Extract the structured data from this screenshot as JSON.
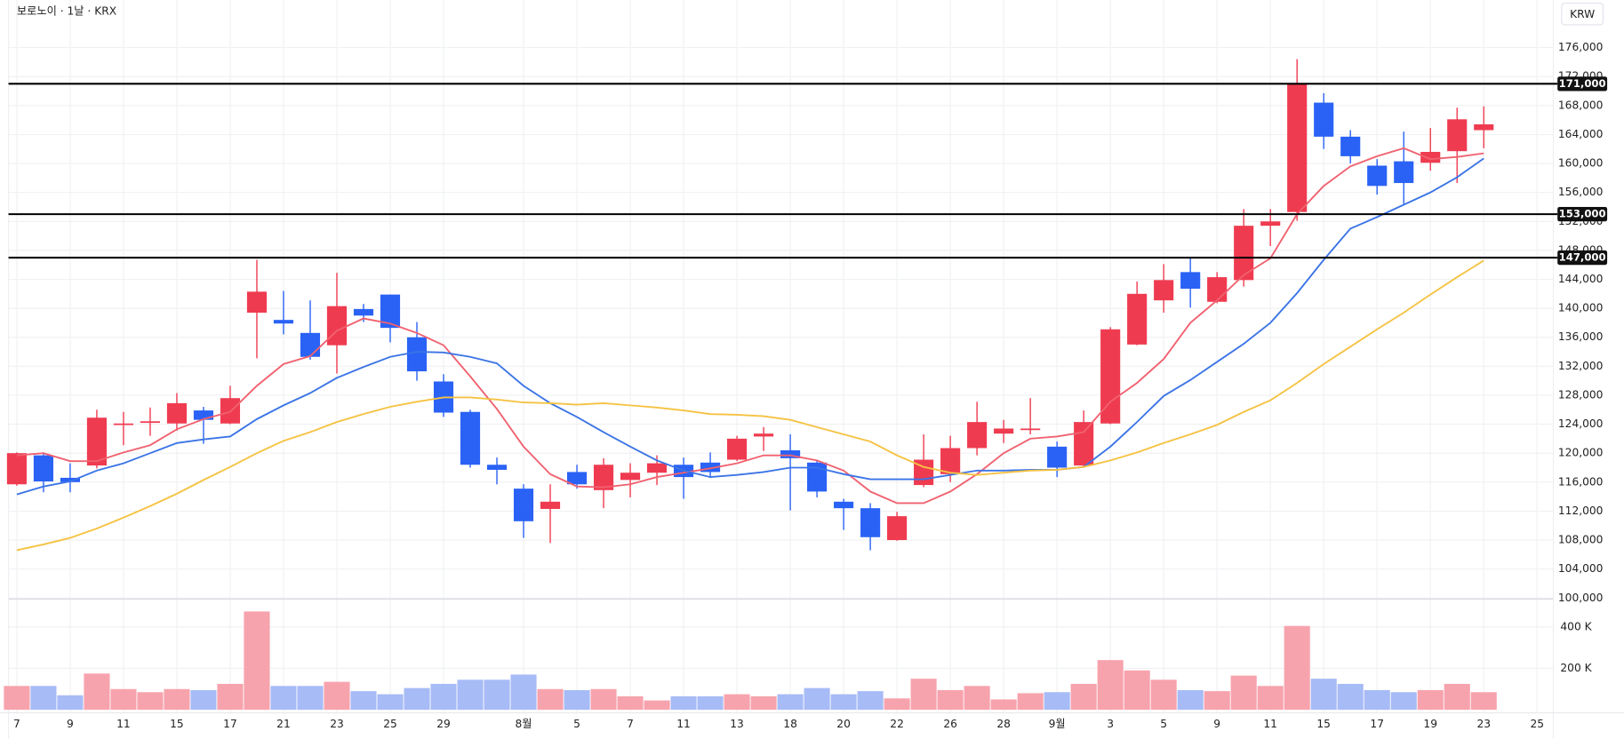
{
  "chart_data": [
    {
      "type": "candlestick",
      "title": "보로노이 · 1날 · KRX",
      "currency": "KRW",
      "categories": [
        "7",
        null,
        "9",
        null,
        "11",
        null,
        "15",
        null,
        "17",
        null,
        "21",
        null,
        "23",
        null,
        "25",
        null,
        "29",
        null,
        null,
        "8월",
        null,
        "5",
        null,
        "7",
        null,
        "11",
        null,
        "13",
        null,
        "18",
        null,
        "20",
        null,
        "22",
        null,
        "26",
        null,
        "28",
        null,
        "9월",
        null,
        "3",
        null,
        "5",
        null,
        "9",
        null,
        "11",
        null,
        "15",
        null,
        "17",
        null,
        "19",
        null,
        "23",
        null,
        "25"
      ],
      "open": [
        115700,
        119700,
        116600,
        118300,
        123900,
        124300,
        124100,
        125900,
        124100,
        139400,
        138400,
        136600,
        134900,
        139900,
        141900,
        136000,
        129900,
        125700,
        118400,
        115100,
        112300,
        117400,
        114900,
        116300,
        117300,
        118400,
        118700,
        119100,
        122300,
        120400,
        118700,
        113300,
        112400,
        108000,
        115600,
        117100,
        120700,
        122700,
        123300,
        120900,
        118300,
        124100,
        135000,
        141100,
        145000,
        140900,
        143900,
        151400,
        153300,
        168400,
        163700,
        159700,
        160300,
        160100,
        161700,
        164600,
        null,
        null
      ],
      "high": [
        120100,
        120100,
        118600,
        126000,
        125700,
        126300,
        128300,
        126400,
        129300,
        146700,
        142400,
        141100,
        144900,
        140600,
        141900,
        138100,
        130900,
        126000,
        119400,
        115700,
        115700,
        118400,
        119300,
        118600,
        119700,
        119400,
        120100,
        122400,
        123600,
        122600,
        119000,
        113700,
        113100,
        111900,
        122600,
        122400,
        127100,
        124600,
        127600,
        121600,
        125900,
        137400,
        143700,
        146100,
        146900,
        145000,
        153700,
        153700,
        174400,
        169700,
        164600,
        160600,
        164400,
        164900,
        167700,
        167900,
        null,
        null
      ],
      "low": [
        115500,
        114600,
        114600,
        117900,
        121100,
        122400,
        123100,
        121300,
        124000,
        133100,
        136400,
        132900,
        131000,
        138100,
        135300,
        130000,
        125000,
        118000,
        115700,
        108300,
        107600,
        115100,
        112400,
        113900,
        115600,
        113700,
        116600,
        118900,
        120300,
        112100,
        113900,
        109400,
        106600,
        107900,
        115300,
        116000,
        119700,
        121400,
        122600,
        116700,
        118000,
        124000,
        134900,
        139400,
        140100,
        140700,
        143000,
        148600,
        152100,
        162000,
        160000,
        155700,
        154400,
        159000,
        157300,
        162100,
        null,
        null
      ],
      "close": [
        120000,
        116100,
        116000,
        124900,
        124100,
        124400,
        126900,
        124600,
        127600,
        142300,
        137900,
        133300,
        140300,
        139000,
        137300,
        131300,
        125600,
        118400,
        117700,
        110600,
        113300,
        115700,
        118400,
        117300,
        118600,
        116700,
        117400,
        122000,
        122700,
        119300,
        114700,
        112400,
        108400,
        111300,
        119100,
        120700,
        124300,
        123400,
        123400,
        118000,
        124300,
        137100,
        142000,
        143900,
        142700,
        144300,
        151400,
        152000,
        171000,
        163700,
        161000,
        156900,
        157300,
        161600,
        166100,
        165400,
        null,
        null
      ],
      "up_color": "#ef3b50",
      "down_color": "#2a62f5",
      "ylim": [
        100000,
        182000
      ],
      "yticks": [
        {
          "value": 100000,
          "label": "100,000"
        },
        {
          "value": 104000,
          "label": "104,000"
        },
        {
          "value": 108000,
          "label": "108,000"
        },
        {
          "value": 112000,
          "label": "112,000"
        },
        {
          "value": 116000,
          "label": "116,000"
        },
        {
          "value": 120000,
          "label": "120,000"
        },
        {
          "value": 124000,
          "label": "124,000"
        },
        {
          "value": 128000,
          "label": "128,000"
        },
        {
          "value": 132000,
          "label": "132,000"
        },
        {
          "value": 136000,
          "label": "136,000"
        },
        {
          "value": 140000,
          "label": "140,000"
        },
        {
          "value": 144000,
          "label": "144,000"
        },
        {
          "value": 148000,
          "label": "148,000"
        },
        {
          "value": 152000,
          "label": "152,000"
        },
        {
          "value": 156000,
          "label": "156,000"
        },
        {
          "value": 160000,
          "label": "160,000"
        },
        {
          "value": 164000,
          "label": "164,000"
        },
        {
          "value": 168000,
          "label": "168,000"
        },
        {
          "value": 172000,
          "label": "172,000"
        },
        {
          "value": 176000,
          "label": "176,000"
        }
      ],
      "grid": true,
      "hlines": [
        {
          "value": 171000,
          "label": "171,000"
        },
        {
          "value": 153000,
          "label": "153,000"
        },
        {
          "value": 147000,
          "label": "147,000"
        }
      ],
      "lines": [
        {
          "color": "#f0616f",
          "values": [
            119700,
            120000,
            118900,
            118900,
            120100,
            121100,
            123300,
            124700,
            125700,
            129300,
            132300,
            133400,
            136900,
            138600,
            137900,
            136600,
            134900,
            130600,
            126100,
            120900,
            117100,
            115400,
            115300,
            115700,
            116700,
            117300,
            117900,
            118600,
            119700,
            119700,
            119000,
            117600,
            114700,
            113100,
            113100,
            114700,
            117100,
            120000,
            122000,
            122300,
            122900,
            127100,
            129700,
            133000,
            138000,
            141100,
            144600,
            146900,
            153000,
            156900,
            159600,
            161000,
            162100,
            160600,
            160900,
            161400,
            null,
            null
          ]
        },
        {
          "color": "#3b74e6",
          "values": [
            114300,
            115400,
            116100,
            117600,
            118600,
            120000,
            121400,
            121900,
            122300,
            124700,
            126600,
            128300,
            130400,
            131900,
            133300,
            134000,
            133900,
            133300,
            132400,
            129300,
            126900,
            125000,
            122900,
            120900,
            119000,
            117600,
            116700,
            117000,
            117400,
            118000,
            118000,
            117100,
            116400,
            116400,
            116400,
            117000,
            117600,
            117600,
            117700,
            117700,
            118100,
            120900,
            124300,
            127900,
            130100,
            132600,
            135100,
            138000,
            142100,
            146700,
            151000,
            152600,
            154300,
            156000,
            158100,
            160700,
            null,
            null
          ]
        },
        {
          "color": "#f5c242",
          "values": [
            106600,
            107400,
            108300,
            109600,
            111100,
            112700,
            114400,
            116300,
            118100,
            120000,
            121700,
            122900,
            124300,
            125400,
            126400,
            127100,
            127700,
            127700,
            127400,
            127000,
            126900,
            126700,
            126900,
            126600,
            126300,
            125900,
            125400,
            125300,
            125100,
            124600,
            123600,
            122600,
            121600,
            119700,
            118100,
            117300,
            117000,
            117300,
            117600,
            117700,
            118100,
            119000,
            120100,
            121400,
            122600,
            123900,
            125700,
            127300,
            129700,
            132300,
            134700,
            137100,
            139400,
            141900,
            144300,
            146600,
            null,
            null
          ]
        }
      ]
    },
    {
      "type": "bar",
      "values": [
        115000,
        115000,
        70000,
        175000,
        100000,
        85000,
        100000,
        95000,
        125000,
        475000,
        115000,
        115000,
        135000,
        90000,
        75000,
        105000,
        125000,
        145000,
        145000,
        170000,
        100000,
        95000,
        100000,
        65000,
        45000,
        65000,
        65000,
        75000,
        65000,
        75000,
        105000,
        75000,
        90000,
        55000,
        150000,
        95000,
        115000,
        50000,
        80000,
        85000,
        125000,
        240000,
        190000,
        145000,
        95000,
        90000,
        165000,
        115000,
        405000,
        150000,
        125000,
        95000,
        85000,
        95000,
        125000,
        85000,
        null,
        null
      ],
      "up_color": "#f7a3ad",
      "down_color": "#a7bbf6",
      "ylim": [
        0,
        520000
      ],
      "yticks": [
        {
          "value": 200000,
          "label": "200 K"
        },
        {
          "value": 400000,
          "label": "400 K"
        }
      ]
    }
  ]
}
